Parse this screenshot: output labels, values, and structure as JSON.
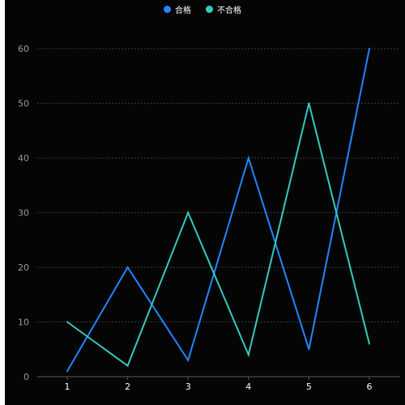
{
  "chart_data": {
    "type": "line",
    "x": [
      "1",
      "2",
      "3",
      "4",
      "5",
      "6"
    ],
    "series": [
      {
        "name": "合格",
        "color": "#1e88ff",
        "values": [
          1,
          20,
          3,
          40,
          5,
          60
        ]
      },
      {
        "name": "不合格",
        "color": "#35c9c3",
        "values": [
          10,
          2,
          30,
          4,
          50,
          6
        ]
      }
    ],
    "yticks": [
      0,
      10,
      20,
      30,
      40,
      50,
      60
    ],
    "ylim": [
      0,
      60
    ],
    "grid": true,
    "legend_position": "top-center"
  }
}
